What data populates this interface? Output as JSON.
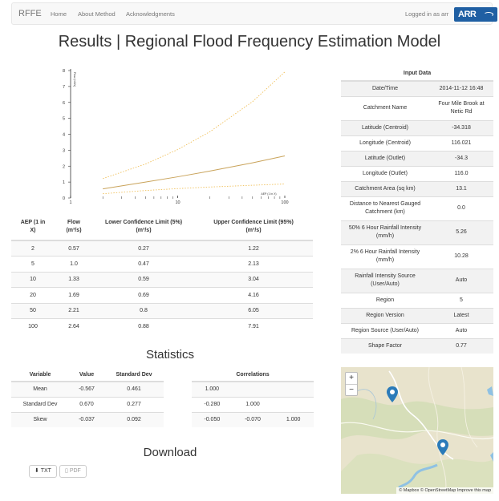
{
  "nav": {
    "brand": "RFFE",
    "links": [
      "Home",
      "About Method",
      "Acknowledgments"
    ],
    "user_status": "Logged in as arr",
    "logo_text": "ARR"
  },
  "page_title": "Results | Regional Flood Frequency Estimation Model",
  "results": {
    "headers": [
      "AEP (1 in X)",
      "Flow (m³/s)",
      "Lower Confidence Limit (5%) (m³/s)",
      "Upper Confidence Limit (95%) (m³/s)"
    ],
    "header_lines": [
      [
        "AEP (1 in",
        "X)"
      ],
      [
        "Flow",
        "(m³/s)"
      ],
      [
        "Lower Confidence Limit (5%)",
        "(m³/s)"
      ],
      [
        "Upper Confidence Limit (95%)",
        "(m³/s)"
      ]
    ],
    "rows": [
      [
        "2",
        "0.57",
        "0.27",
        "1.22"
      ],
      [
        "5",
        "1.0",
        "0.47",
        "2.13"
      ],
      [
        "10",
        "1.33",
        "0.59",
        "3.04"
      ],
      [
        "20",
        "1.69",
        "0.69",
        "4.16"
      ],
      [
        "50",
        "2.21",
        "0.8",
        "6.05"
      ],
      [
        "100",
        "2.64",
        "0.88",
        "7.91"
      ]
    ]
  },
  "chart_data": {
    "type": "line",
    "title": "",
    "xlabel": "AEP (1 in X)",
    "ylabel": "Flow (m3/s)",
    "x_scale": "log",
    "xlim": [
      1,
      100
    ],
    "ylim": [
      0,
      8
    ],
    "x": [
      2,
      5,
      10,
      20,
      50,
      100
    ],
    "series": [
      {
        "values": [
          0.57,
          1.0,
          1.33,
          1.69,
          2.21,
          2.64
        ],
        "style": "solid",
        "color": "#c9a35a"
      },
      {
        "values": [
          0.27,
          0.47,
          0.59,
          0.69,
          0.8,
          0.88
        ],
        "style": "dotted",
        "color": "#f0c05a"
      },
      {
        "values": [
          1.22,
          2.13,
          3.04,
          4.16,
          6.05,
          7.91
        ],
        "style": "dotted",
        "color": "#f0c05a"
      }
    ],
    "y_ticks": [
      "0",
      "1",
      "2",
      "3",
      "4",
      "5",
      "6",
      "7",
      "8"
    ],
    "x_ticks": [
      "1",
      "10",
      "100"
    ]
  },
  "input_data": {
    "title": "Input Data",
    "rows": [
      {
        "label": "Date/Time",
        "value": "2014-11-12 16:48"
      },
      {
        "label": "Catchment Name",
        "value": "Four Mile Brook at Netic Rd"
      },
      {
        "label": "Latitude (Centroid)",
        "value": "-34.318"
      },
      {
        "label": "Longitude (Centroid)",
        "value": "116.021"
      },
      {
        "label": "Latitude (Outlet)",
        "value": "-34.3"
      },
      {
        "label": "Longitude (Outlet)",
        "value": "116.0"
      },
      {
        "label": "Catchment Area (sq km)",
        "value": "13.1"
      },
      {
        "label": "Distance to Nearest Gauged Catchment (km)",
        "value": "0.0"
      },
      {
        "label": "50% 6 Hour Rainfall Intensity (mm/h)",
        "value": "5.26"
      },
      {
        "label": "2% 6 Hour Rainfall Intensity (mm/h)",
        "value": "10.28"
      },
      {
        "label": "Rainfall Intensity Source (User/Auto)",
        "value": "Auto"
      },
      {
        "label": "Region",
        "value": "5"
      },
      {
        "label": "Region Version",
        "value": "Latest"
      },
      {
        "label": "Region Source (User/Auto)",
        "value": "Auto"
      },
      {
        "label": "Shape Factor",
        "value": "0.77"
      }
    ]
  },
  "statistics": {
    "title": "Statistics",
    "headers": [
      "Variable",
      "Value",
      "Standard Dev"
    ],
    "rows": [
      [
        "Mean",
        "-0.567",
        "0.461"
      ],
      [
        "Standard Dev",
        "0.670",
        "0.277"
      ],
      [
        "Skew",
        "-0.037",
        "0.092"
      ]
    ],
    "correlations_title": "Correlations",
    "correlations": [
      [
        "1.000",
        "",
        ""
      ],
      [
        "-0.280",
        "1.000",
        ""
      ],
      [
        "-0.050",
        "-0.070",
        "1.000"
      ]
    ]
  },
  "download": {
    "title": "Download",
    "txt_label": "TXT",
    "pdf_label": "PDF"
  },
  "map": {
    "zoom_in": "+",
    "zoom_out": "−",
    "attribution": "© Mapbox © OpenStreetMap Improve this map"
  }
}
